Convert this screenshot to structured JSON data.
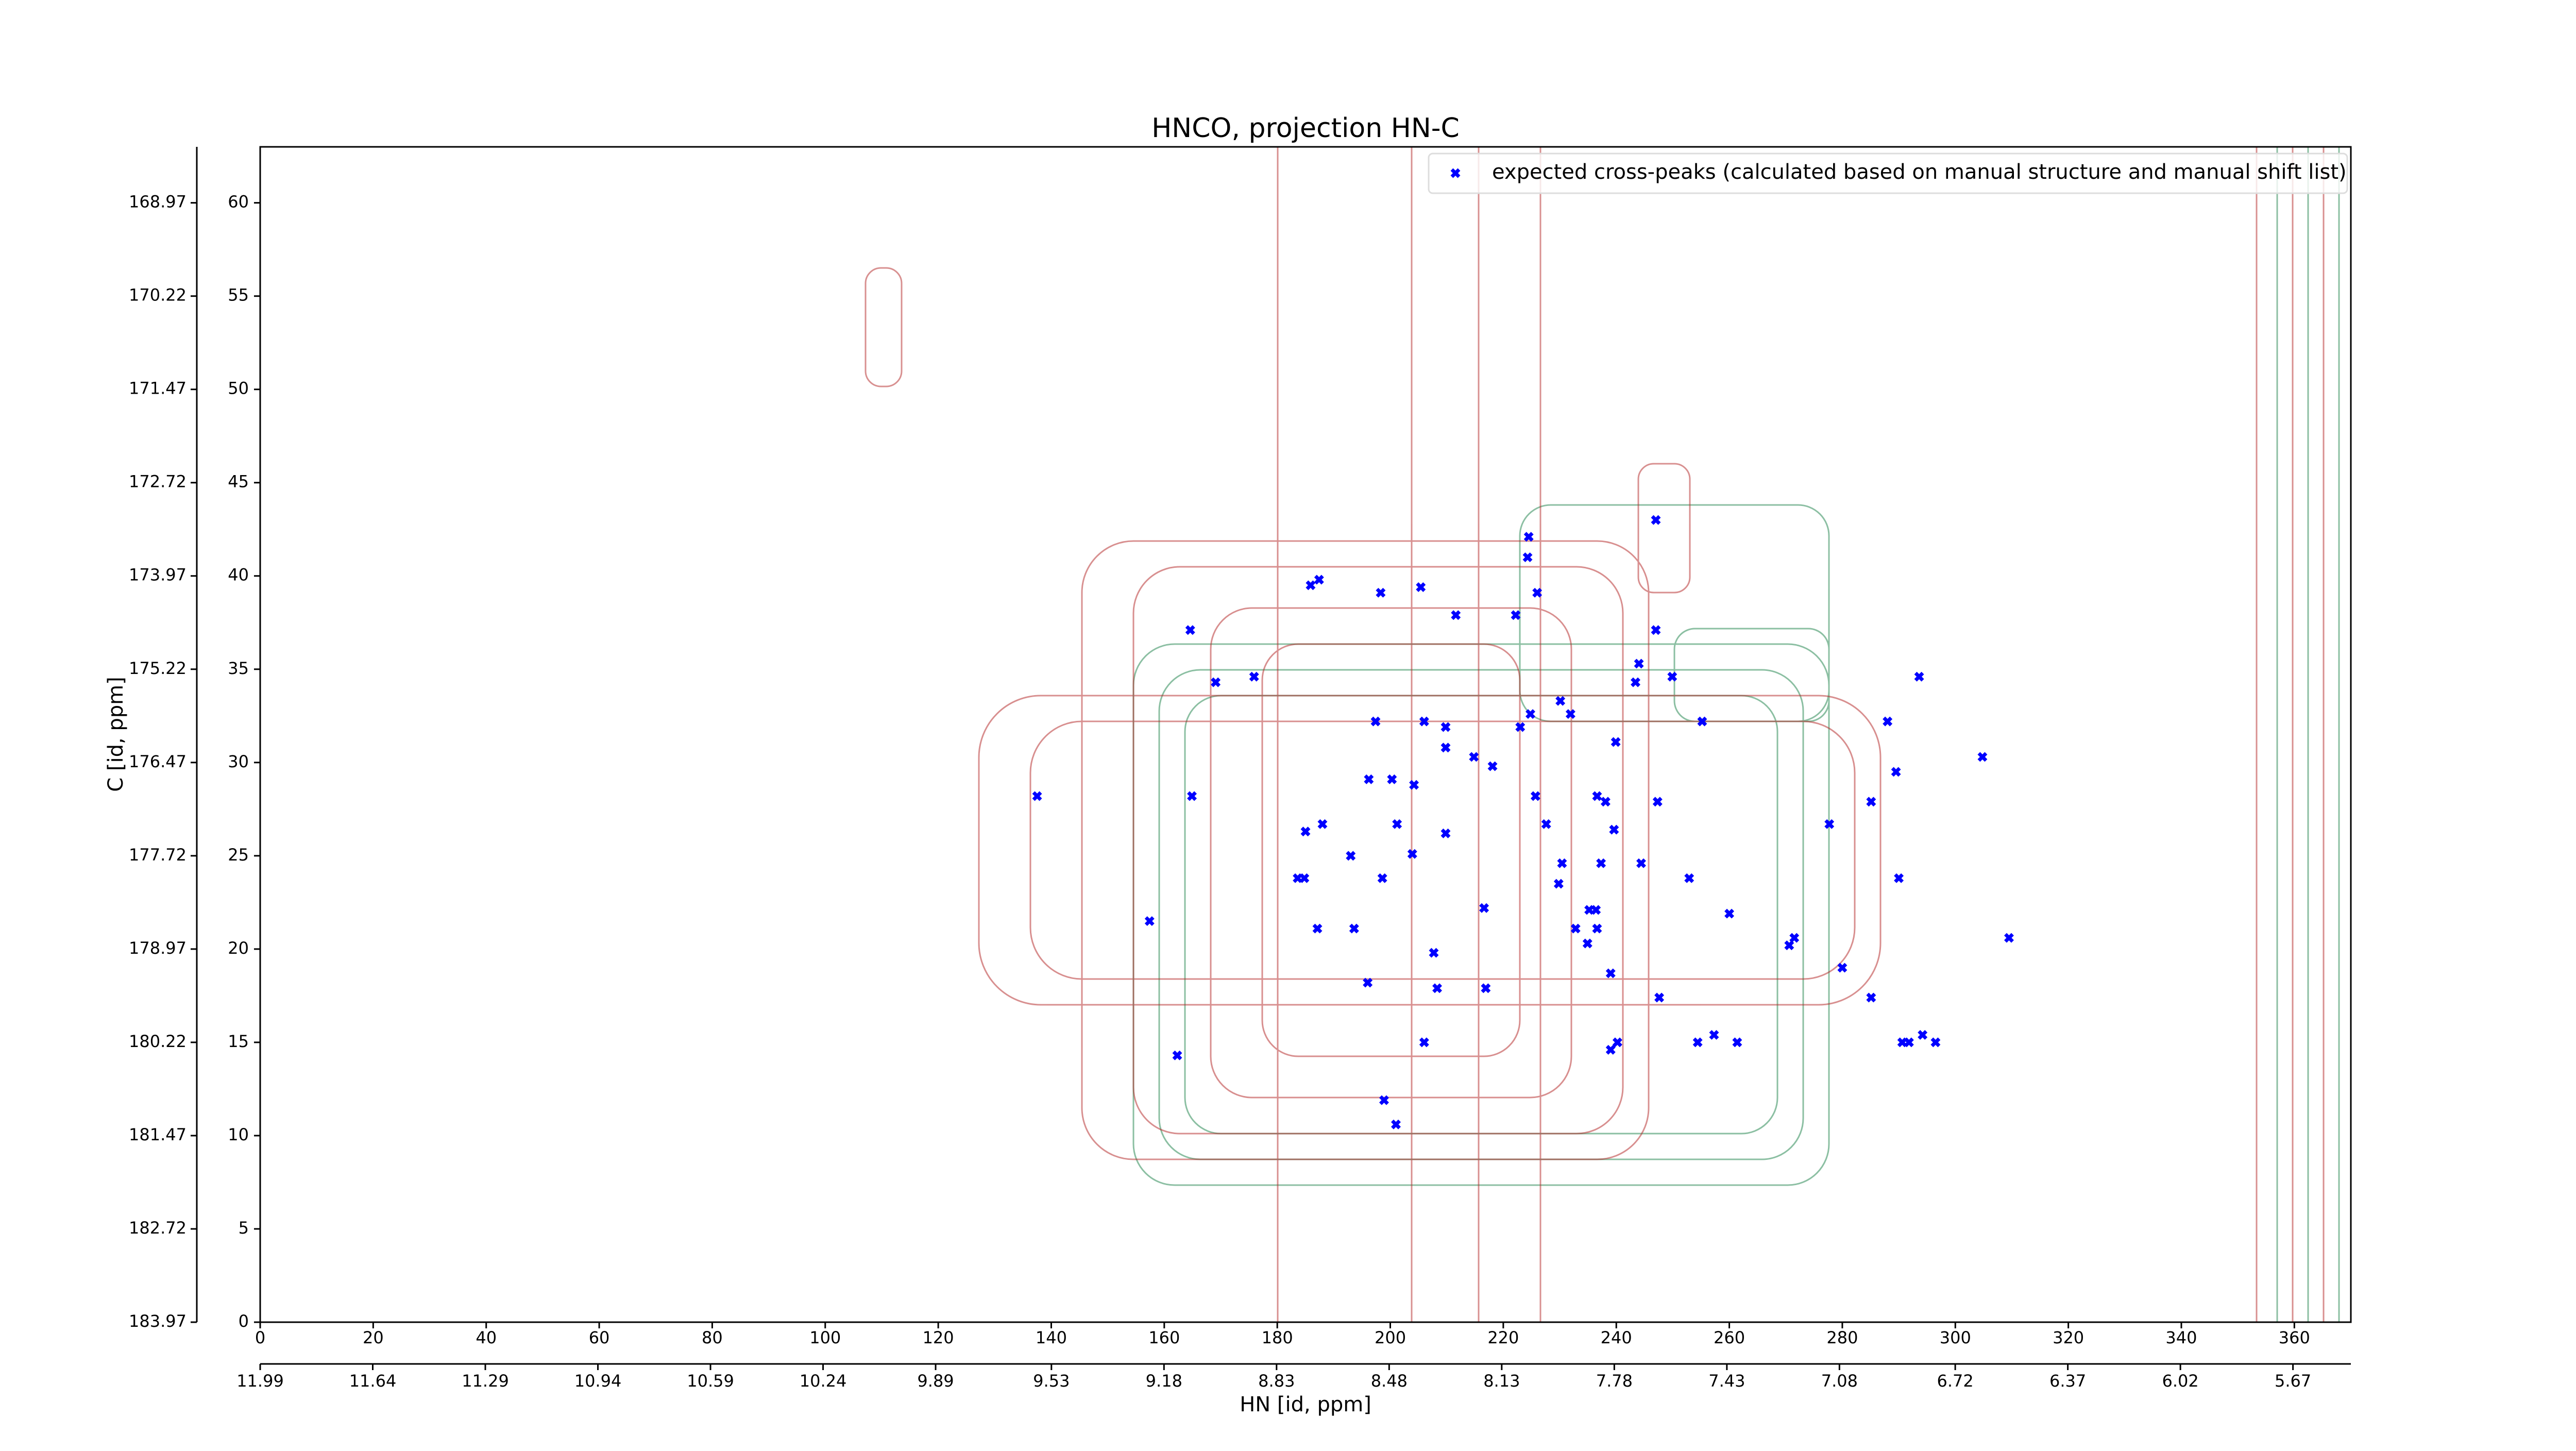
{
  "chart_data": {
    "type": "scatter",
    "title": "HNCO, projection HN-C",
    "xlabel": "HN [id, ppm]",
    "ylabel": "C [id, ppm]",
    "xlim": [
      0,
      370
    ],
    "xticks": [
      0,
      20,
      40,
      60,
      80,
      100,
      120,
      140,
      160,
      180,
      200,
      220,
      240,
      260,
      280,
      300,
      320,
      340,
      360
    ],
    "ylim": [
      0,
      63
    ],
    "yticks": [
      0,
      5,
      10,
      15,
      20,
      25,
      30,
      35,
      40,
      45,
      50,
      55,
      60
    ],
    "x2lim": [
      11.99,
      5.49
    ],
    "x2ticks": [
      11.99,
      11.64,
      11.29,
      10.94,
      10.59,
      10.24,
      9.89,
      9.53,
      9.18,
      8.83,
      8.48,
      8.13,
      7.78,
      7.43,
      7.08,
      6.72,
      6.37,
      6.02,
      5.67
    ],
    "y2lim": [
      183.97,
      168.22
    ],
    "y2ticks": [
      183.97,
      182.72,
      181.47,
      180.22,
      178.97,
      177.72,
      176.47,
      175.22,
      173.97,
      172.72,
      171.47,
      170.22,
      168.97
    ],
    "legend": "upper right",
    "series": [
      {
        "name": "expected cross-peaks (calculated based on manual structure and manual shift list)",
        "color": "#0000ff",
        "marker": "x",
        "x": [
          137.5,
          157.4,
          162.3,
          164.6,
          164.9,
          169.1,
          175.9,
          185.9,
          187.4,
          198.3,
          205.4,
          211.6,
          224.5,
          224.3,
          226.0,
          222.2,
          247.0,
          247.0,
          244.0,
          243.4,
          249.9,
          197.4,
          206.0,
          209.8,
          209.8,
          214.8,
          218.1,
          224.8,
          223.0,
          230.1,
          231.9,
          239.9,
          255.2,
          288.0,
          293.6,
          304.8,
          289.5,
          285.1,
          277.7,
          196.2,
          200.3,
          204.2,
          225.7,
          236.6,
          238.1,
          247.3,
          227.6,
          239.6,
          201.2,
          209.8,
          185.0,
          188.0,
          193.0,
          203.9,
          183.6,
          184.8,
          198.6,
          230.4,
          229.8,
          237.3,
          244.4,
          252.9,
          290.0,
          216.6,
          235.2,
          236.4,
          232.8,
          236.6,
          234.9,
          187.1,
          193.6,
          260.0,
          271.5,
          270.6,
          207.7,
          239.0,
          280.0,
          309.5,
          196.0,
          208.3,
          216.9,
          247.6,
          285.1,
          206.0,
          239.0,
          240.2,
          254.4,
          257.3,
          261.4,
          290.6,
          291.8,
          294.2,
          296.5,
          198.9,
          201.0
        ],
        "y": [
          28.2,
          21.5,
          14.3,
          37.1,
          28.2,
          34.3,
          34.6,
          39.5,
          39.8,
          39.1,
          39.4,
          37.9,
          42.1,
          41.0,
          39.1,
          37.9,
          43.0,
          37.1,
          35.3,
          34.3,
          34.6,
          32.2,
          32.2,
          31.9,
          30.8,
          30.3,
          29.8,
          32.6,
          31.9,
          33.3,
          32.6,
          31.1,
          32.2,
          32.2,
          34.6,
          30.3,
          29.5,
          27.9,
          26.7,
          29.1,
          29.1,
          28.8,
          28.2,
          28.2,
          27.9,
          27.9,
          26.7,
          26.4,
          26.7,
          26.2,
          26.3,
          26.7,
          25.0,
          25.1,
          23.8,
          23.8,
          23.8,
          24.6,
          23.5,
          24.6,
          24.6,
          23.8,
          23.8,
          22.2,
          22.1,
          22.1,
          21.1,
          21.1,
          20.3,
          21.1,
          21.1,
          21.9,
          20.6,
          20.2,
          19.8,
          18.7,
          19.0,
          20.6,
          18.2,
          17.9,
          17.9,
          17.4,
          17.4,
          15.0,
          14.6,
          15.0,
          15.0,
          15.4,
          15.0,
          15.0,
          15.0,
          15.4,
          15.0,
          11.9,
          10.6
        ]
      }
    ]
  }
}
